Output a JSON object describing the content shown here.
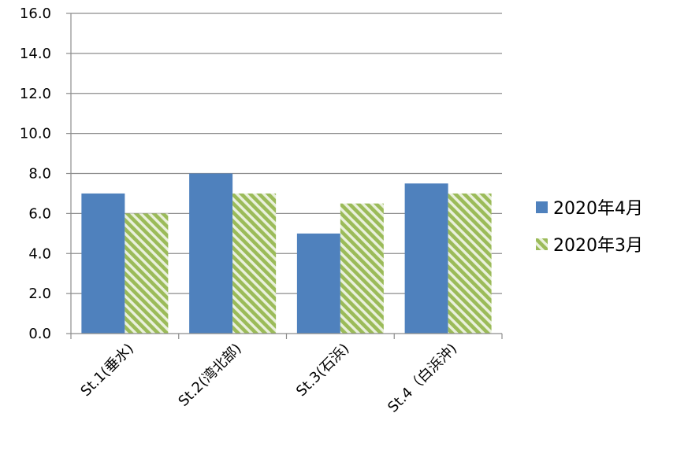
{
  "chart_data": {
    "type": "bar",
    "categories": [
      "St.1(垂水)",
      "St.2(湾北部)",
      "St.3(石浜)",
      "St.4（白浜沖)"
    ],
    "series": [
      {
        "name": "2020年4月",
        "values": [
          7.0,
          8.0,
          5.0,
          7.5
        ],
        "color": "#4f81bd",
        "fill": "solid"
      },
      {
        "name": "2020年3月",
        "values": [
          6.0,
          7.0,
          6.5,
          7.0
        ],
        "color": "#9bbb59",
        "fill": "diagonal-stripes"
      }
    ],
    "ylim": [
      0,
      16
    ],
    "yticks": [
      "0.0",
      "2.0",
      "4.0",
      "6.0",
      "8.0",
      "10.0",
      "12.0",
      "14.0",
      "16.0"
    ],
    "grid": true,
    "legend_position": "right",
    "title": "",
    "xlabel": "",
    "ylabel": ""
  }
}
